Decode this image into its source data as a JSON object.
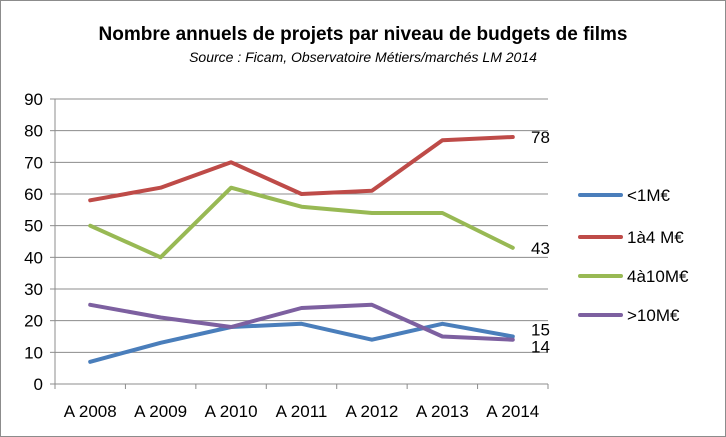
{
  "chart_data": {
    "type": "line",
    "title": "Nombre annuels de projets par niveau de budgets de films",
    "subtitle": "Source : Ficam, Observatoire  Métiers/marchés LM 2014",
    "xlabel": "",
    "ylabel": "",
    "categories": [
      "A 2008",
      "A 2009",
      "A 2010",
      "A 2011",
      "A 2012",
      "A 2013",
      "A 2014"
    ],
    "ylim": [
      0,
      90
    ],
    "yticks": [
      0,
      10,
      20,
      30,
      40,
      50,
      60,
      70,
      80,
      90
    ],
    "grid": true,
    "legend_position": "right",
    "series": [
      {
        "name": "<1M€",
        "color": "#4a7ebb",
        "values": [
          7,
          13,
          18,
          19,
          14,
          19,
          15
        ]
      },
      {
        "name": "1à4 M€",
        "color": "#be4b48",
        "values": [
          58,
          62,
          70,
          60,
          61,
          77,
          78
        ]
      },
      {
        "name": "4à10M€",
        "color": "#98b954",
        "values": [
          50,
          40,
          62,
          56,
          54,
          54,
          43
        ]
      },
      {
        "name": ">10M€",
        "color": "#7d60a0",
        "values": [
          25,
          21,
          18,
          24,
          25,
          15,
          14
        ]
      }
    ],
    "end_labels": [
      {
        "series": 1,
        "text": "78"
      },
      {
        "series": 2,
        "text": "43"
      },
      {
        "series": 0,
        "text": "15"
      },
      {
        "series": 3,
        "text": "14"
      }
    ]
  }
}
